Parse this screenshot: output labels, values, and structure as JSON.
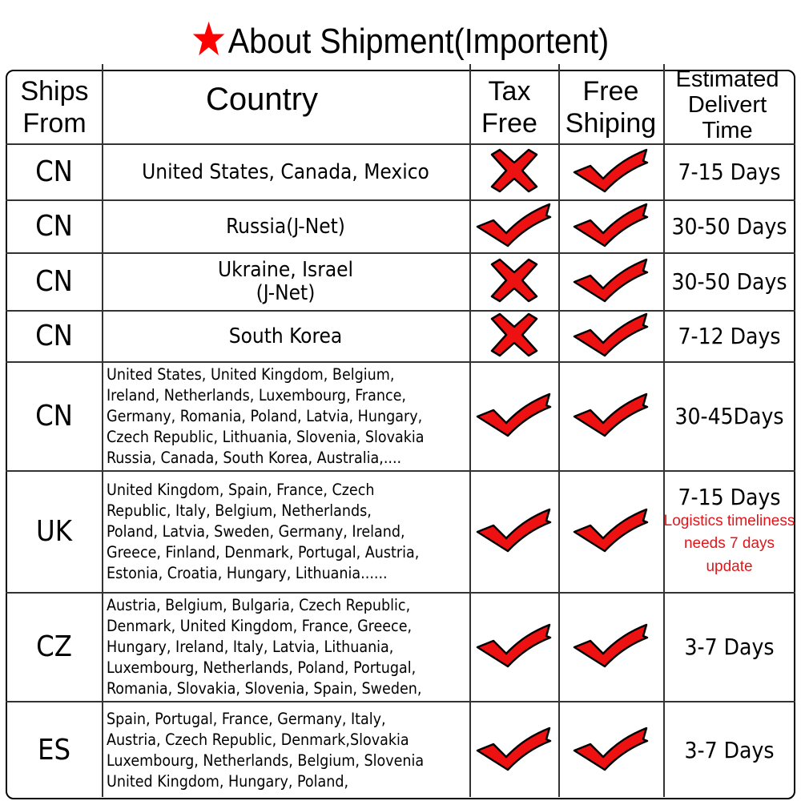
{
  "title": "About Shipment(Importent)",
  "colors": {
    "accent": "#ff0000",
    "mark": "#ee1111"
  },
  "headers": {
    "ships_from": "Ships From",
    "country": "Country",
    "tax_free": "Tax Free",
    "free_shipping": "Free Shiping",
    "delivery_time": "Estimated Delivert Time"
  },
  "rows": [
    {
      "from": "CN",
      "countries": [
        "United States, Canada, Mexico"
      ],
      "tax_free": "cross",
      "free_shipping": "check",
      "time": "7-15 Days"
    },
    {
      "from": "CN",
      "countries": [
        "Russia(J-Net)"
      ],
      "tax_free": "check",
      "free_shipping": "check",
      "time": "30-50 Days"
    },
    {
      "from": "CN",
      "countries": [
        "Ukraine, Israel",
        "(J-Net)"
      ],
      "tax_free": "cross",
      "free_shipping": "check",
      "time": "30-50 Days"
    },
    {
      "from": "CN",
      "countries": [
        "South Korea"
      ],
      "tax_free": "cross",
      "free_shipping": "check",
      "time": "7-12 Days"
    },
    {
      "from": "CN",
      "countries": [
        "United States, United Kingdom, Belgium,",
        "Ireland, Netherlands, Luxembourg, France,",
        "Germany, Romania, Poland, Latvia, Hungary,",
        "Czech Republic, Lithuania, Slovenia, Slovakia",
        "Russia, Canada, South Korea, Australia,...."
      ],
      "tax_free": "check",
      "free_shipping": "check",
      "time": "30-45Days"
    },
    {
      "from": "UK",
      "countries": [
        "United Kingdom, Spain, France, Czech",
        "Republic, Italy, Belgium, Netherlands,",
        "Poland, Latvia, Sweden, Germany, Ireland,",
        "Greece, Finland, Denmark, Portugal, Austria,",
        "Estonia, Croatia, Hungary, Lithuania......"
      ],
      "tax_free": "check",
      "free_shipping": "check",
      "time": "7-15 Days",
      "note": [
        "Logistics timeliness",
        "needs 7 days update"
      ]
    },
    {
      "from": "CZ",
      "countries": [
        "Austria, Belgium, Bulgaria, Czech Republic,",
        "Denmark, United Kingdom,  France, Greece,",
        "Hungary, Ireland, Italy, Latvia, Lithuania,",
        "Luxembourg, Netherlands, Poland, Portugal,",
        "Romania, Slovakia, Slovenia, Spain, Sweden,"
      ],
      "tax_free": "check",
      "free_shipping": "check",
      "time": "3-7 Days"
    },
    {
      "from": "ES",
      "countries": [
        "Spain, Portugal, France, Germany, Italy,",
        "Austria, Czech Republic, Denmark,Slovakia",
        "Luxembourg, Netherlands, Belgium, Slovenia",
        "United Kingdom, Hungary, Poland,"
      ],
      "tax_free": "check",
      "free_shipping": "check",
      "time": "3-7 Days"
    }
  ]
}
